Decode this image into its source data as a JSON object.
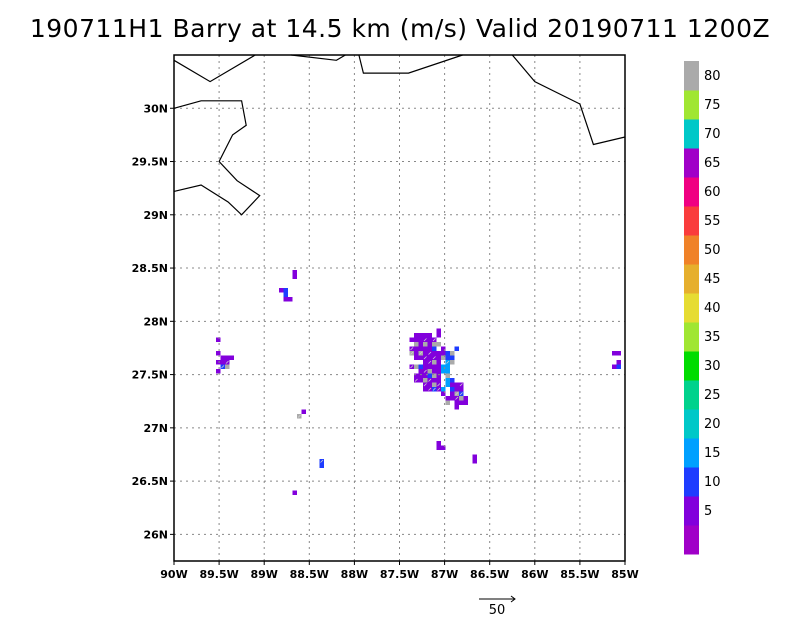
{
  "title": "190711H1 Barry at 14.5 km (m/s) Valid 20190711  1200Z",
  "map": {
    "lon_range": [
      -90.0,
      -85.0
    ],
    "lat_range": [
      25.75,
      30.5
    ],
    "x_ticks": [
      {
        "value": -90.0,
        "label": "90W"
      },
      {
        "value": -89.5,
        "label": "89.5W"
      },
      {
        "value": -89.0,
        "label": "89W"
      },
      {
        "value": -88.5,
        "label": "88.5W"
      },
      {
        "value": -88.0,
        "label": "88W"
      },
      {
        "value": -87.5,
        "label": "87.5W"
      },
      {
        "value": -87.0,
        "label": "87W"
      },
      {
        "value": -86.5,
        "label": "86.5W"
      },
      {
        "value": -86.0,
        "label": "86W"
      },
      {
        "value": -85.5,
        "label": "85.5W"
      },
      {
        "value": -85.0,
        "label": "85W"
      }
    ],
    "y_ticks": [
      {
        "value": 26.0,
        "label": "26N"
      },
      {
        "value": 26.5,
        "label": "26.5N"
      },
      {
        "value": 27.0,
        "label": "27N"
      },
      {
        "value": 27.5,
        "label": "27.5N"
      },
      {
        "value": 28.0,
        "label": "28N"
      },
      {
        "value": 28.5,
        "label": "28.5N"
      },
      {
        "value": 29.0,
        "label": "29N"
      },
      {
        "value": 29.5,
        "label": "29.5N"
      },
      {
        "value": 30.0,
        "label": "30N"
      }
    ],
    "grid": "dotted",
    "coastlines": [
      [
        [
          -90.0,
          30.45
        ],
        [
          -89.6,
          30.25
        ],
        [
          -89.1,
          30.5
        ]
      ],
      [
        [
          -88.7,
          30.5
        ],
        [
          -88.2,
          30.45
        ],
        [
          -88.1,
          30.5
        ]
      ],
      [
        [
          -87.95,
          30.5
        ],
        [
          -87.9,
          30.33
        ],
        [
          -87.4,
          30.33
        ],
        [
          -86.8,
          30.5
        ]
      ],
      [
        [
          -86.25,
          30.5
        ],
        [
          -86.0,
          30.25
        ],
        [
          -85.5,
          30.04
        ],
        [
          -85.35,
          29.66
        ],
        [
          -85.0,
          29.73
        ]
      ],
      [
        [
          -90.0,
          30.0
        ],
        [
          -89.7,
          30.07
        ],
        [
          -89.25,
          30.07
        ],
        [
          -89.2,
          29.84
        ],
        [
          -89.35,
          29.75
        ],
        [
          -89.5,
          29.5
        ],
        [
          -89.3,
          29.32
        ],
        [
          -89.05,
          29.18
        ],
        [
          -89.25,
          29.0
        ],
        [
          -89.4,
          29.12
        ],
        [
          -89.7,
          29.28
        ],
        [
          -90.0,
          29.22
        ]
      ]
    ],
    "vector_reference": {
      "value": "50"
    }
  },
  "colorbar": {
    "levels": [
      {
        "color": "#a000c8",
        "label": ""
      },
      {
        "color": "#8200dc",
        "label": "5"
      },
      {
        "color": "#1e3cff",
        "label": "10"
      },
      {
        "color": "#00a0ff",
        "label": "15"
      },
      {
        "color": "#00c8c8",
        "label": "20"
      },
      {
        "color": "#00d28c",
        "label": "25"
      },
      {
        "color": "#00dc00",
        "label": "30"
      },
      {
        "color": "#a0e632",
        "label": "35"
      },
      {
        "color": "#e6dc32",
        "label": "40"
      },
      {
        "color": "#e6af2d",
        "label": "45"
      },
      {
        "color": "#f08228",
        "label": "50"
      },
      {
        "color": "#fa3c3c",
        "label": "55"
      },
      {
        "color": "#f00082",
        "label": "60"
      },
      {
        "color": "#a000c8",
        "label": "65"
      },
      {
        "color": "#00c8c8",
        "label": "70"
      },
      {
        "color": "#a0e632",
        "label": "75"
      },
      {
        "color": "#aaaaaa",
        "label": "80"
      }
    ]
  },
  "wind_field": {
    "units": "m/s",
    "patches": [
      {
        "lon": -87.15,
        "lat": 27.62,
        "spread_lon": 0.17,
        "spread_lat": 0.22,
        "n": 160,
        "level": 1
      },
      {
        "lon": -87.3,
        "lat": 27.78,
        "spread_lon": 0.12,
        "spread_lat": 0.12,
        "n": 60,
        "level": 1
      },
      {
        "lon": -86.9,
        "lat": 27.35,
        "spread_lon": 0.09,
        "spread_lat": 0.12,
        "n": 50,
        "level": 1
      },
      {
        "lon": -87.0,
        "lat": 27.52,
        "spread_lon": 0.05,
        "spread_lat": 0.12,
        "n": 22,
        "level": 3
      },
      {
        "lon": -86.95,
        "lat": 27.7,
        "spread_lon": 0.05,
        "spread_lat": 0.07,
        "n": 10,
        "level": 2
      },
      {
        "lon": -89.47,
        "lat": 27.65,
        "spread_lon": 0.07,
        "spread_lat": 0.06,
        "n": 12,
        "level": 1
      },
      {
        "lon": -88.78,
        "lat": 28.25,
        "spread_lon": 0.05,
        "spread_lat": 0.06,
        "n": 9,
        "level": 1
      },
      {
        "lon": -88.7,
        "lat": 28.45,
        "spread_lon": 0.03,
        "spread_lat": 0.05,
        "n": 5,
        "level": 1
      },
      {
        "lon": -85.1,
        "lat": 27.64,
        "spread_lon": 0.05,
        "spread_lat": 0.08,
        "n": 8,
        "level": 1
      },
      {
        "lon": -88.7,
        "lat": 26.42,
        "spread_lon": 0.02,
        "spread_lat": 0.05,
        "n": 4,
        "level": 1
      },
      {
        "lon": -88.38,
        "lat": 26.68,
        "spread_lon": 0.03,
        "spread_lat": 0.02,
        "n": 3,
        "level": 1
      },
      {
        "lon": -86.7,
        "lat": 26.73,
        "spread_lon": 0.03,
        "spread_lat": 0.03,
        "n": 3,
        "level": 1
      },
      {
        "lon": -87.05,
        "lat": 26.86,
        "spread_lon": 0.03,
        "spread_lat": 0.02,
        "n": 3,
        "level": 1
      },
      {
        "lon": -88.62,
        "lat": 27.15,
        "spread_lon": 0.02,
        "spread_lat": 0.02,
        "n": 2,
        "level": 1
      },
      {
        "lon": -89.53,
        "lat": 27.87,
        "spread_lon": 0.02,
        "spread_lat": 0.02,
        "n": 2,
        "level": 1
      }
    ]
  }
}
